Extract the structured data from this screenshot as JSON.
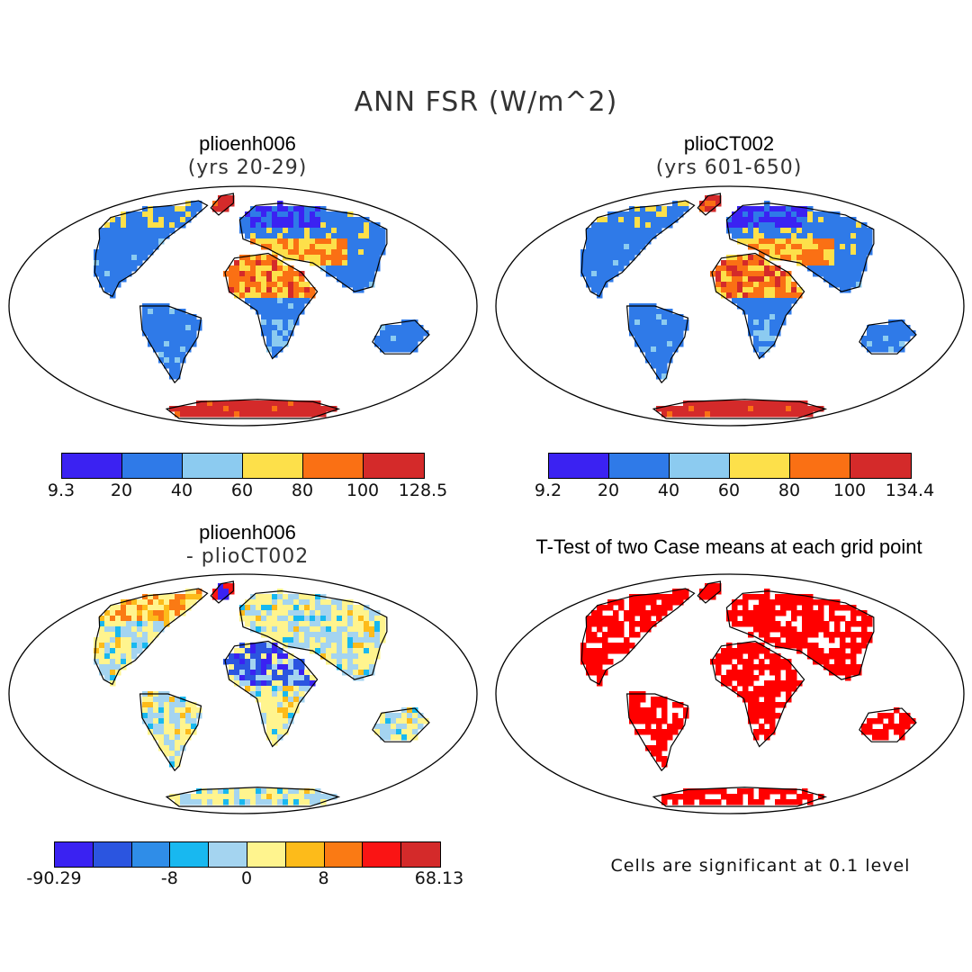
{
  "figure": {
    "title": "ANN FSR (W/m^2)"
  },
  "panels": {
    "p1": {
      "title": "plioenh006",
      "subtitle": "(yrs 20-29)"
    },
    "p2": {
      "title": "plioCT002",
      "subtitle": "(yrs 601-650)"
    },
    "p3": {
      "title": "plioenh006",
      "subtitle": "- plioCT002"
    },
    "p4": {
      "title": "T-Test of two Case means at each grid point",
      "note": "Cells are significant at 0.1 level"
    }
  },
  "colorbars": {
    "cb1": {
      "colors": [
        "#3b22f2",
        "#2f7ae8",
        "#8ccbf0",
        "#fde04a",
        "#fa7014",
        "#d42a2a"
      ],
      "labels": [
        "9.3",
        "20",
        "40",
        "60",
        "80",
        "100",
        "128.5"
      ]
    },
    "cb2": {
      "colors": [
        "#3b22f2",
        "#2f7ae8",
        "#8ccbf0",
        "#fde04a",
        "#fa7014",
        "#d42a2a"
      ],
      "labels": [
        "9.2",
        "20",
        "40",
        "60",
        "80",
        "100",
        "134.4"
      ]
    },
    "cb3": {
      "colors": [
        "#3a22f2",
        "#2b55e0",
        "#2f8de8",
        "#18b8f0",
        "#a4d4f0",
        "#fff48e",
        "#fdbb1a",
        "#fa7a14",
        "#fa1414",
        "#d42a2a"
      ],
      "labels": [
        "-90.29",
        "-8",
        "0",
        "8",
        "68.13"
      ]
    }
  },
  "palette": {
    "ocean": "#ffffff",
    "coast": "#000000",
    "ttest_significant": "#ff0000"
  }
}
